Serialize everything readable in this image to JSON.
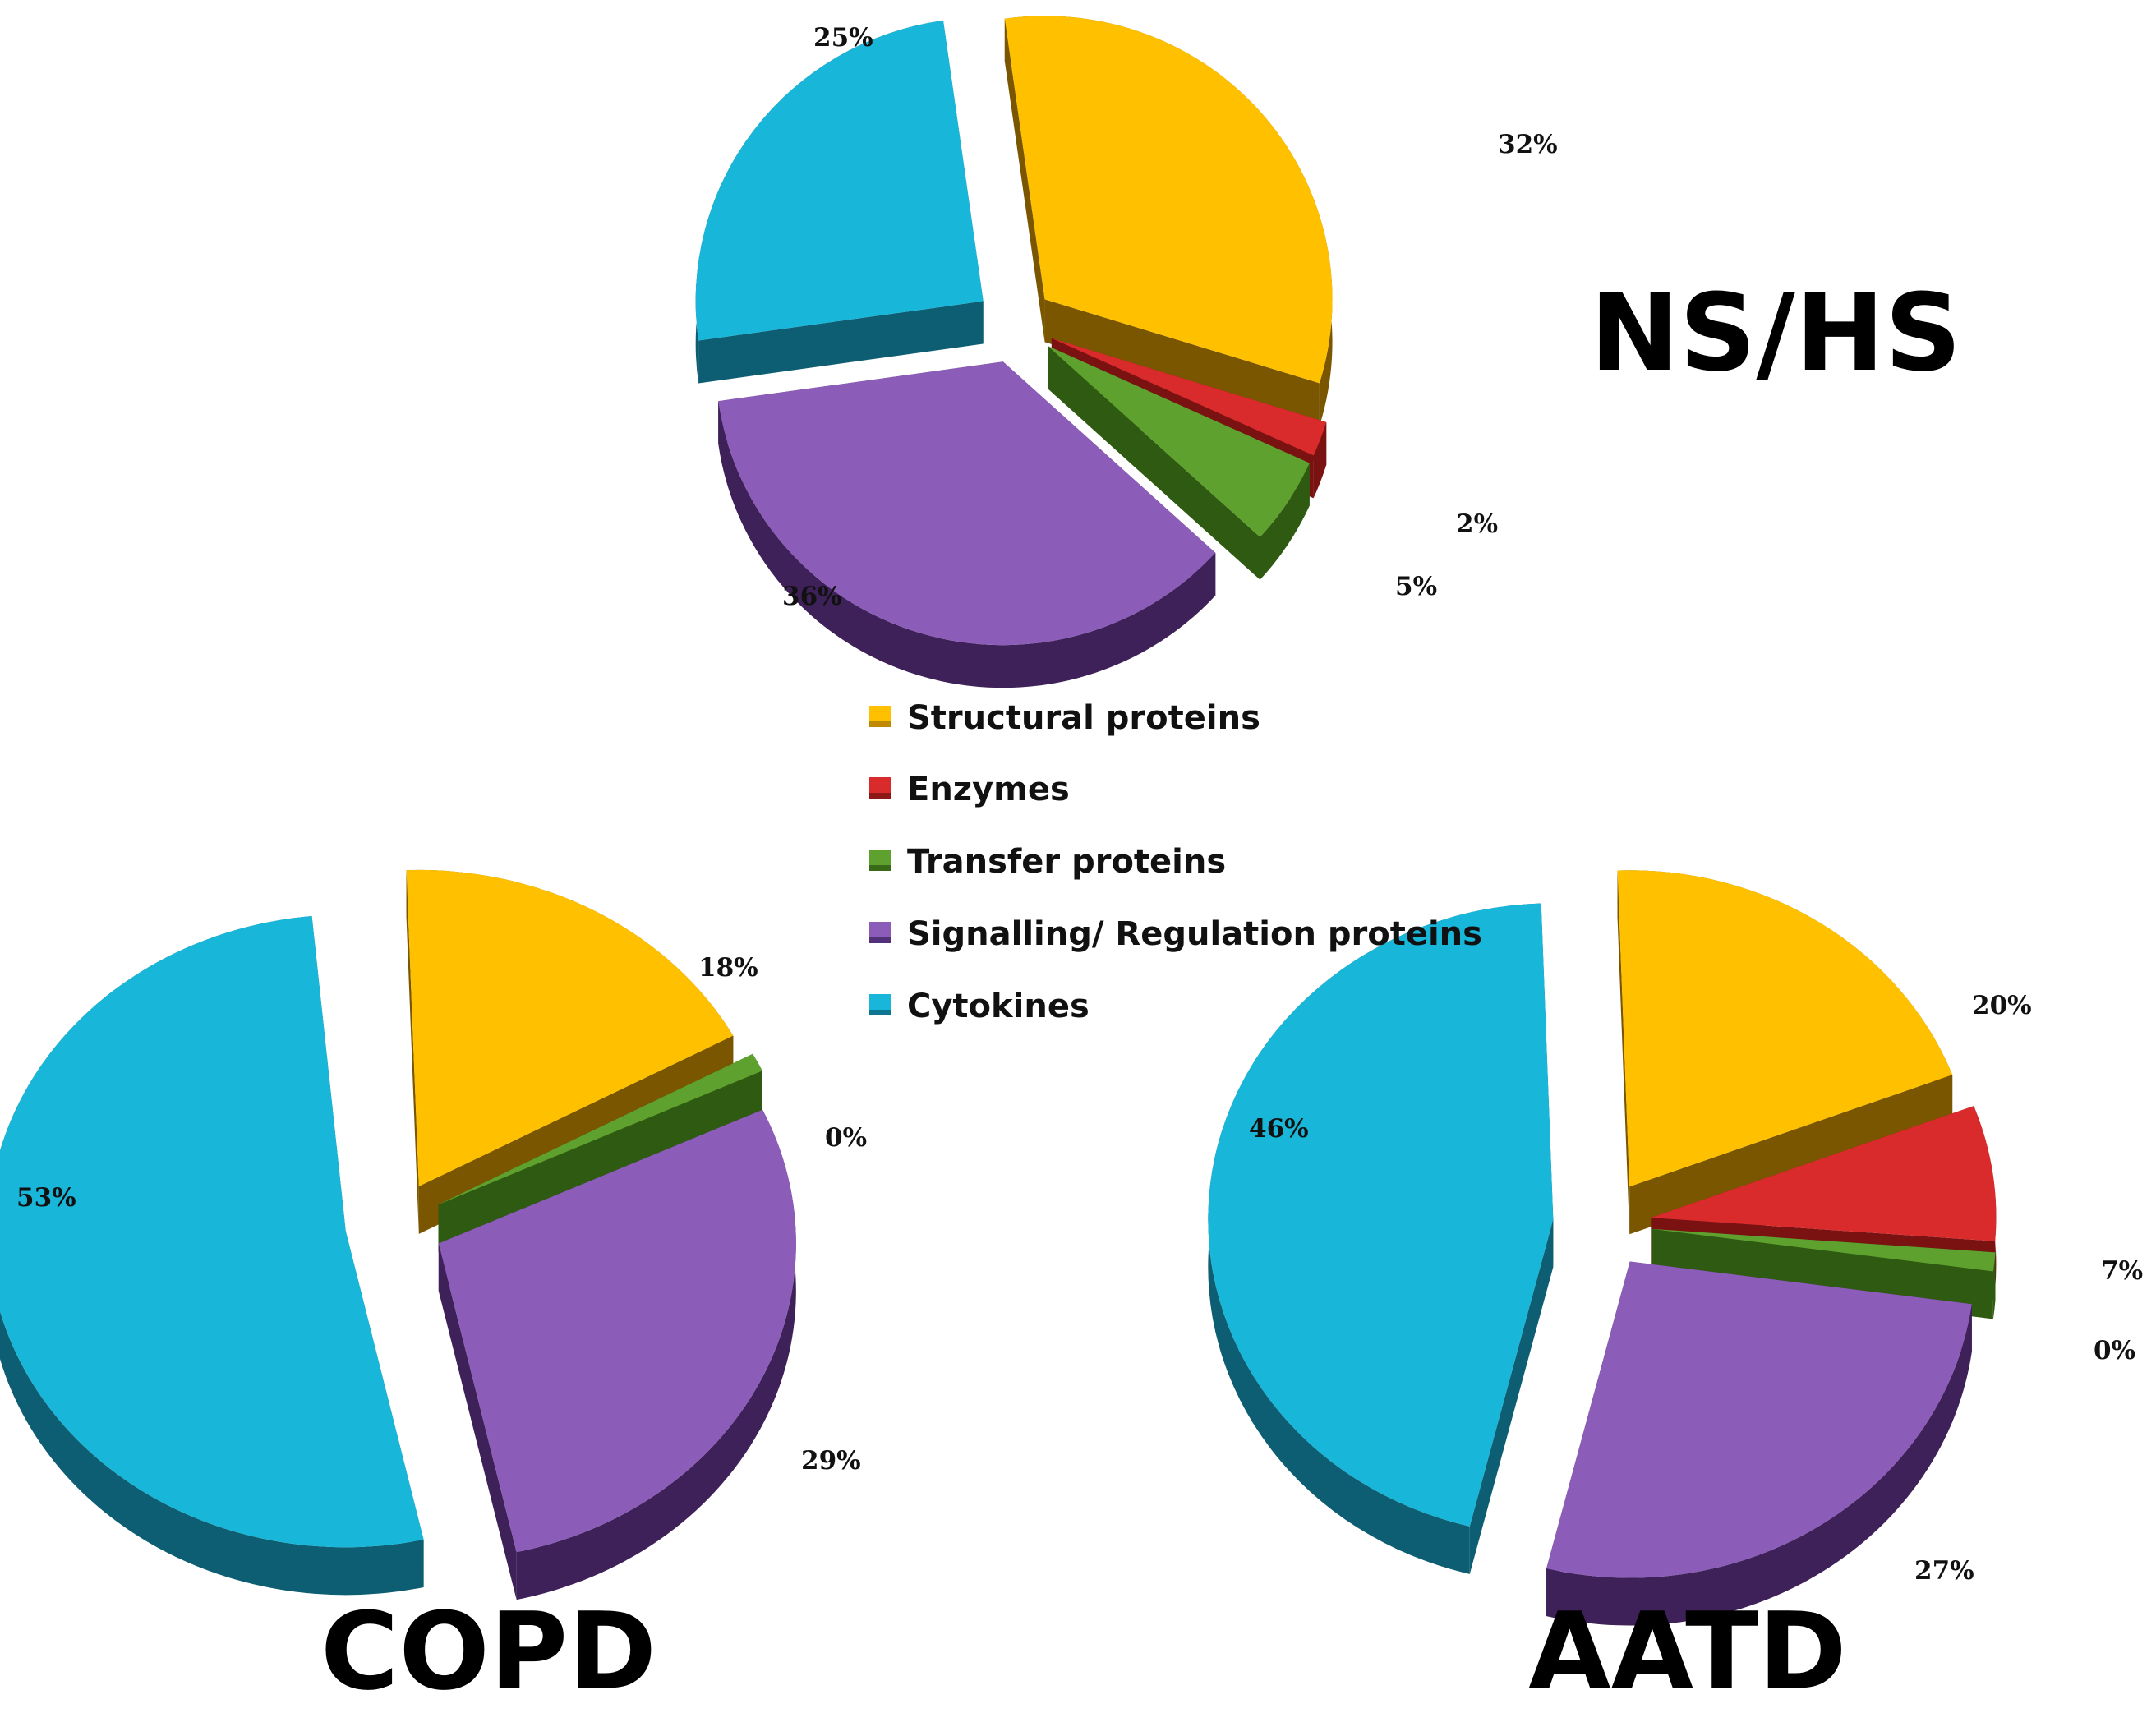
{
  "chart_data": [
    {
      "type": "pie",
      "title": "NS/HS",
      "categories": [
        "Structural proteins",
        "Enzymes",
        "Transfer proteins",
        "Signalling/ Regulation proteins",
        "Cytokines"
      ],
      "values": [
        32,
        2,
        5,
        36,
        25
      ],
      "labels": [
        "32%",
        "2%",
        "5%",
        "36%",
        "25%"
      ]
    },
    {
      "type": "pie",
      "title": "COPD",
      "categories": [
        "Structural proteins",
        "Enzymes",
        "Transfer proteins",
        "Signalling/ Regulation proteins",
        "Cytokines"
      ],
      "values": [
        18,
        0,
        0,
        29,
        53
      ],
      "labels": [
        "18%",
        "",
        "0%",
        "29%",
        "53%"
      ]
    },
    {
      "type": "pie",
      "title": "AATD",
      "categories": [
        "Structural proteins",
        "Enzymes",
        "Transfer proteins",
        "Signalling/ Regulation proteins",
        "Cytokines"
      ],
      "values": [
        20,
        7,
        0,
        27,
        46
      ],
      "labels": [
        "20%",
        "7%",
        "0%",
        "27%",
        "46%"
      ]
    }
  ],
  "legend": [
    {
      "label": "Structural proteins",
      "color": "#FFC000"
    },
    {
      "label": "Enzymes",
      "color": "#D92B2B"
    },
    {
      "label": "Transfer proteins",
      "color": "#5FA12E"
    },
    {
      "label": "Signalling/ Regulation proteins",
      "color": "#8B5CB8"
    },
    {
      "label": "Cytokines",
      "color": "#18B6D9"
    }
  ],
  "colors": {
    "top": [
      "#FFC000",
      "#D92B2B",
      "#5FA12E",
      "#8B5CB8",
      "#18B6D9"
    ],
    "side": [
      "#7A5600",
      "#7A1212",
      "#2F5A12",
      "#3E2158",
      "#0D5E72"
    ]
  }
}
